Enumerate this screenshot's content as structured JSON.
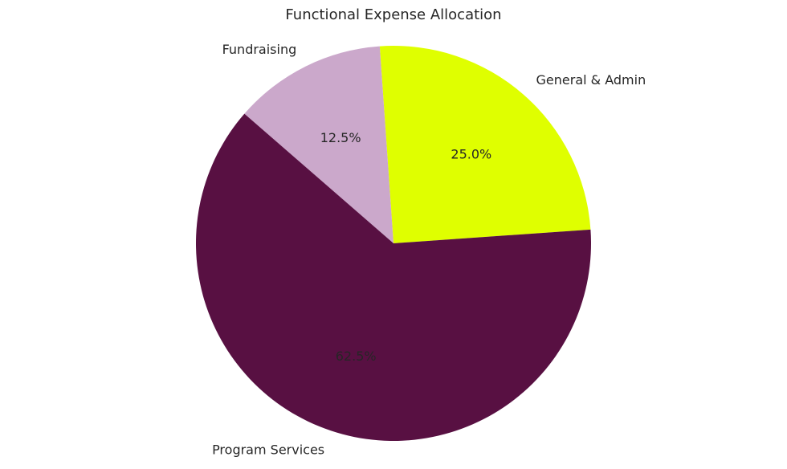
{
  "chart_data": {
    "type": "pie",
    "title": "Functional Expense Allocation",
    "slices": [
      {
        "label": "Program Services",
        "value": 62.5,
        "percent_label": "62.5%",
        "color": "#581042"
      },
      {
        "label": "General & Admin",
        "value": 25.0,
        "percent_label": "25.0%",
        "color": "#DFFF00"
      },
      {
        "label": "Fundraising",
        "value": 12.5,
        "percent_label": "12.5%",
        "color": "#CBA8CB"
      }
    ],
    "legend": "none"
  }
}
